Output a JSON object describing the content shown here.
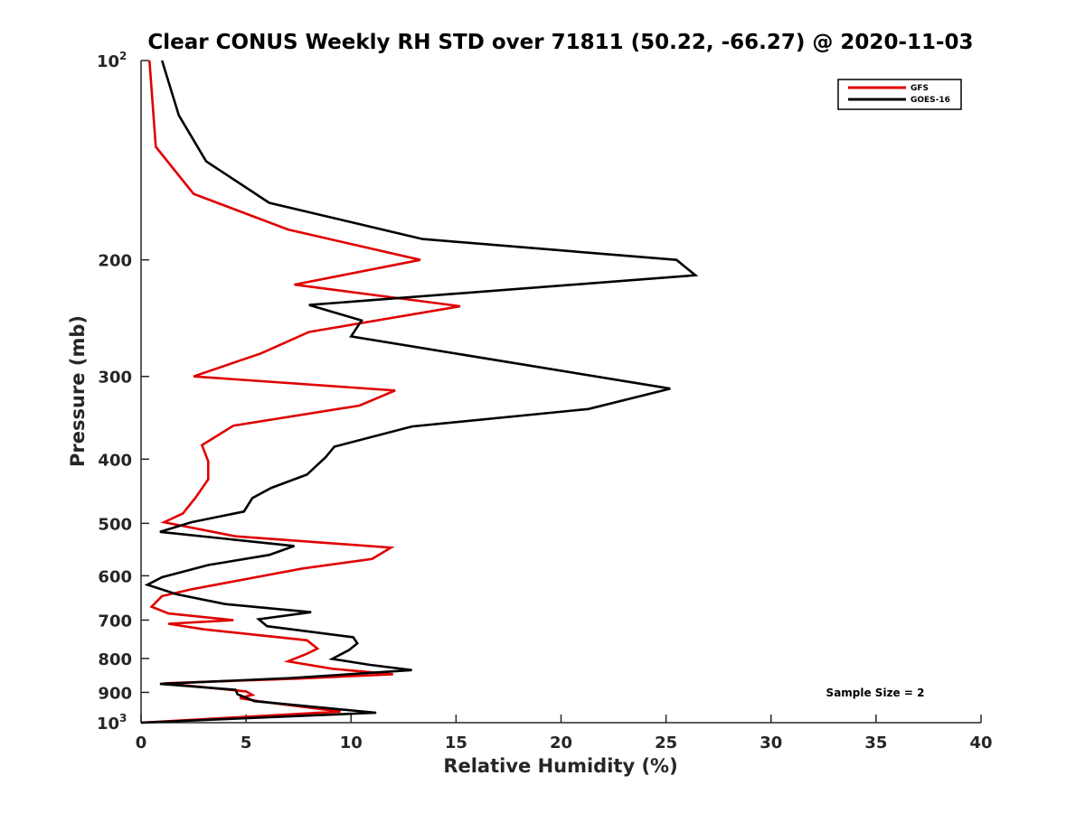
{
  "chart_data": {
    "type": "line",
    "title": "Clear CONUS Weekly RH STD over 71811 (50.22, -66.27) @ 2020-11-03",
    "xlabel": "Relative Humidity (%)",
    "ylabel": "Pressure (mb)",
    "xlim": [
      0,
      40
    ],
    "ylim": [
      100,
      1000
    ],
    "yscale": "log",
    "y_reversed": true,
    "xticks": [
      {
        "value": 0,
        "label": "0"
      },
      {
        "value": 5,
        "label": "5"
      },
      {
        "value": 10,
        "label": "10"
      },
      {
        "value": 15,
        "label": "15"
      },
      {
        "value": 20,
        "label": "20"
      },
      {
        "value": 25,
        "label": "25"
      },
      {
        "value": 30,
        "label": "30"
      },
      {
        "value": 35,
        "label": "35"
      },
      {
        "value": 40,
        "label": "40"
      }
    ],
    "yticks": [
      {
        "value": 100,
        "label": "10",
        "sup": "2"
      },
      {
        "value": 200,
        "label": "200"
      },
      {
        "value": 300,
        "label": "300"
      },
      {
        "value": 400,
        "label": "400"
      },
      {
        "value": 500,
        "label": "500"
      },
      {
        "value": 600,
        "label": "600"
      },
      {
        "value": 700,
        "label": "700"
      },
      {
        "value": 800,
        "label": "800"
      },
      {
        "value": 900,
        "label": "900"
      },
      {
        "value": 1000,
        "label": "10",
        "sup": "3"
      }
    ],
    "grid": false,
    "legend_position": "top-right",
    "annotation": "Sample Size = 2",
    "series": [
      {
        "name": "GFS",
        "color": "#e00000",
        "points": [
          [
            0.4,
            100
          ],
          [
            0.7,
            135
          ],
          [
            2.5,
            159
          ],
          [
            7.0,
            180
          ],
          [
            13.3,
            200
          ],
          [
            7.3,
            218
          ],
          [
            15.2,
            235
          ],
          [
            8.0,
            257
          ],
          [
            5.7,
            277
          ],
          [
            2.5,
            300
          ],
          [
            12.1,
            315
          ],
          [
            10.4,
            332
          ],
          [
            4.4,
            356
          ],
          [
            2.9,
            381
          ],
          [
            3.2,
            403
          ],
          [
            3.2,
            429
          ],
          [
            2.6,
            457
          ],
          [
            2.0,
            483
          ],
          [
            1.1,
            498
          ],
          [
            4.5,
            523
          ],
          [
            11.9,
            544
          ],
          [
            11.0,
            566
          ],
          [
            7.7,
            585
          ],
          [
            5.1,
            606
          ],
          [
            2.4,
            629
          ],
          [
            1.0,
            644
          ],
          [
            0.5,
            668
          ],
          [
            1.3,
            684
          ],
          [
            4.4,
            700
          ],
          [
            1.3,
            709
          ],
          [
            3.0,
            723
          ],
          [
            7.9,
            751
          ],
          [
            8.4,
            773
          ],
          [
            7.9,
            787
          ],
          [
            7.0,
            808
          ],
          [
            9.1,
            829
          ],
          [
            12.0,
            845
          ],
          [
            7.5,
            858
          ],
          [
            1.1,
            872
          ],
          [
            5.0,
            897
          ],
          [
            5.3,
            908
          ],
          [
            4.7,
            918
          ],
          [
            5.7,
            929
          ],
          [
            9.5,
            962
          ],
          [
            0.0,
            1000
          ]
        ]
      },
      {
        "name": "GOES-16",
        "color": "#000000",
        "points": [
          [
            1.0,
            100
          ],
          [
            1.8,
            121
          ],
          [
            3.1,
            142
          ],
          [
            6.1,
            164
          ],
          [
            13.4,
            186
          ],
          [
            25.5,
            200
          ],
          [
            26.4,
            211
          ],
          [
            8.0,
            234
          ],
          [
            10.5,
            247
          ],
          [
            10.0,
            261
          ],
          [
            25.2,
            313
          ],
          [
            21.3,
            336
          ],
          [
            12.9,
            357
          ],
          [
            9.2,
            383
          ],
          [
            8.8,
            397
          ],
          [
            7.9,
            422
          ],
          [
            6.2,
            442
          ],
          [
            5.3,
            458
          ],
          [
            4.9,
            480
          ],
          [
            2.4,
            498
          ],
          [
            0.9,
            515
          ],
          [
            7.3,
            541
          ],
          [
            6.1,
            558
          ],
          [
            3.2,
            578
          ],
          [
            1.0,
            603
          ],
          [
            0.3,
            619
          ],
          [
            1.7,
            640
          ],
          [
            4.0,
            662
          ],
          [
            8.1,
            681
          ],
          [
            5.6,
            698
          ],
          [
            6.0,
            715
          ],
          [
            10.1,
            743
          ],
          [
            10.3,
            759
          ],
          [
            9.9,
            777
          ],
          [
            9.1,
            801
          ],
          [
            10.9,
            818
          ],
          [
            12.9,
            833
          ],
          [
            7.2,
            856
          ],
          [
            0.9,
            874
          ],
          [
            4.5,
            892
          ],
          [
            4.6,
            906
          ],
          [
            5.4,
            928
          ],
          [
            11.2,
            966
          ],
          [
            0.0,
            1000
          ]
        ]
      }
    ]
  }
}
